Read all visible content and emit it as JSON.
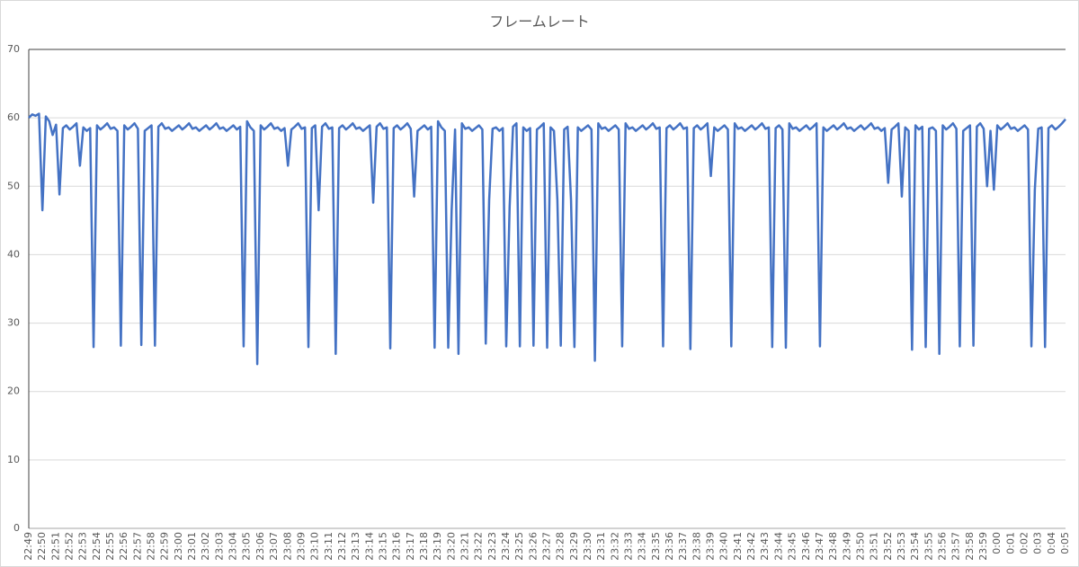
{
  "chart_data": {
    "type": "line",
    "title": "フレームレート",
    "categories": [
      "22:49",
      null,
      null,
      null,
      "22:50",
      null,
      null,
      null,
      "22:51",
      null,
      null,
      null,
      "22:52",
      null,
      null,
      null,
      "22:53",
      null,
      null,
      null,
      "22:54",
      null,
      null,
      null,
      "22:55",
      null,
      null,
      null,
      "22:56",
      null,
      null,
      null,
      "22:57",
      null,
      null,
      null,
      "22:58",
      null,
      null,
      null,
      "22:59",
      null,
      null,
      null,
      "23:00",
      null,
      null,
      null,
      "23:01",
      null,
      null,
      null,
      "23:02",
      null,
      null,
      null,
      "23:03",
      null,
      null,
      null,
      "23:04",
      null,
      null,
      null,
      "23:05",
      null,
      null,
      null,
      "23:06",
      null,
      null,
      null,
      "23:07",
      null,
      null,
      null,
      "23:08",
      null,
      null,
      null,
      "23:09",
      null,
      null,
      null,
      "23:10",
      null,
      null,
      null,
      "23:11",
      null,
      null,
      null,
      "23:12",
      null,
      null,
      null,
      "23:13",
      null,
      null,
      null,
      "23:14",
      null,
      null,
      null,
      "23:15",
      null,
      null,
      null,
      "23:16",
      null,
      null,
      null,
      "23:17",
      null,
      null,
      null,
      "23:18",
      null,
      null,
      null,
      "23:19",
      null,
      null,
      null,
      "23:20",
      null,
      null,
      null,
      "23:21",
      null,
      null,
      null,
      "23:22",
      null,
      null,
      null,
      "23:23",
      null,
      null,
      null,
      "23:24",
      null,
      null,
      null,
      "23:25",
      null,
      null,
      null,
      "23:26",
      null,
      null,
      null,
      "23:27",
      null,
      null,
      null,
      "23:28",
      null,
      null,
      null,
      "23:29",
      null,
      null,
      null,
      "23:30",
      null,
      null,
      null,
      "23:31",
      null,
      null,
      null,
      "23:32",
      null,
      null,
      null,
      "23:33",
      null,
      null,
      null,
      "23:34",
      null,
      null,
      null,
      "23:35",
      null,
      null,
      null,
      "23:36",
      null,
      null,
      null,
      "23:37",
      null,
      null,
      null,
      "23:38",
      null,
      null,
      null,
      "23:39",
      null,
      null,
      null,
      "23:40",
      null,
      null,
      null,
      "23:41",
      null,
      null,
      null,
      "23:42",
      null,
      null,
      null,
      "23:43",
      null,
      null,
      null,
      "23:44",
      null,
      null,
      null,
      "23:45",
      null,
      null,
      null,
      "23:46",
      null,
      null,
      null,
      "23:47",
      null,
      null,
      null,
      "23:48",
      null,
      null,
      null,
      "23:49",
      null,
      null,
      null,
      "23:50",
      null,
      null,
      null,
      "23:51",
      null,
      null,
      null,
      "23:52",
      null,
      null,
      null,
      "23:53",
      null,
      null,
      null,
      "23:54",
      null,
      null,
      null,
      "23:55",
      null,
      null,
      null,
      "23:56",
      null,
      null,
      null,
      "23:57",
      null,
      null,
      null,
      "23:58",
      null,
      null,
      null,
      "23:59",
      null,
      null,
      null,
      "0:00",
      null,
      null,
      null,
      "0:01",
      null,
      null,
      null,
      "0:02",
      null,
      null,
      null,
      "0:03",
      null,
      null,
      null,
      "0:04",
      null,
      null,
      null,
      "0:05"
    ],
    "series": [
      {
        "color": "#4472c4",
        "values": [
          60,
          60.5,
          60.3,
          60.6,
          46.5,
          60.2,
          59.5,
          57.5,
          59,
          48.8,
          58.5,
          58.9,
          58.3,
          58.7,
          59.2,
          53,
          58.6,
          58.1,
          58.5,
          26.5,
          58.9,
          58.3,
          58.7,
          59.2,
          58.4,
          58.6,
          58.1,
          26.7,
          58.9,
          58.3,
          58.7,
          59.2,
          58.4,
          26.8,
          58.1,
          58.5,
          58.9,
          26.7,
          58.7,
          59.2,
          58.4,
          58.6,
          58.1,
          58.5,
          58.9,
          58.3,
          58.7,
          59.2,
          58.4,
          58.6,
          58.1,
          58.5,
          58.9,
          58.3,
          58.7,
          59.2,
          58.4,
          58.6,
          58.1,
          58.5,
          58.9,
          58.3,
          58.7,
          26.6,
          59.5,
          58.6,
          58.1,
          24,
          58.9,
          58.3,
          58.7,
          59.2,
          58.4,
          58.6,
          58.1,
          58.5,
          53,
          58.3,
          58.7,
          59.2,
          58.4,
          58.6,
          26.5,
          58.5,
          58.9,
          46.5,
          58.7,
          59.2,
          58.4,
          58.6,
          25.5,
          58.5,
          58.9,
          58.3,
          58.7,
          59.2,
          58.4,
          58.6,
          58.1,
          58.5,
          58.9,
          47.6,
          58.7,
          59.2,
          58.4,
          58.6,
          26.3,
          58.5,
          58.9,
          58.3,
          58.7,
          59.2,
          58.4,
          48.5,
          58.1,
          58.5,
          58.9,
          58.3,
          58.7,
          26.4,
          59.5,
          58.6,
          58.1,
          26.4,
          46.5,
          58.3,
          25.5,
          59.2,
          58.4,
          58.6,
          58.1,
          58.5,
          58.9,
          58.3,
          27,
          48,
          58.4,
          58.6,
          58.1,
          58.5,
          26.6,
          47,
          58.7,
          59.2,
          26.6,
          58.6,
          58.1,
          58.5,
          26.7,
          58.3,
          58.7,
          59.2,
          26.4,
          58.6,
          58.1,
          48,
          26.7,
          58.3,
          58.7,
          48,
          26.5,
          58.6,
          58.1,
          58.5,
          58.9,
          58.3,
          24.5,
          59.2,
          58.4,
          58.6,
          58.1,
          58.5,
          58.9,
          58.3,
          26.6,
          59.2,
          58.4,
          58.6,
          58.1,
          58.5,
          58.9,
          58.3,
          58.7,
          59.2,
          58.4,
          58.6,
          26.6,
          58.5,
          58.9,
          58.3,
          58.7,
          59.2,
          58.4,
          58.6,
          26.2,
          58.5,
          58.9,
          58.3,
          58.7,
          59.2,
          51.5,
          58.6,
          58.1,
          58.5,
          58.9,
          58.3,
          26.6,
          59.2,
          58.4,
          58.6,
          58.1,
          58.5,
          58.9,
          58.3,
          58.7,
          59.2,
          58.4,
          58.6,
          26.5,
          58.5,
          58.9,
          58.3,
          26.4,
          59.2,
          58.4,
          58.6,
          58.1,
          58.5,
          58.9,
          58.3,
          58.7,
          59.2,
          26.6,
          58.6,
          58.1,
          58.5,
          58.9,
          58.3,
          58.7,
          59.2,
          58.4,
          58.6,
          58.1,
          58.5,
          58.9,
          58.3,
          58.7,
          59.2,
          58.4,
          58.6,
          58.1,
          58.5,
          50.5,
          58.3,
          58.7,
          59.2,
          48.5,
          58.6,
          58.1,
          26.1,
          58.9,
          58.3,
          58.7,
          26.5,
          58.4,
          58.6,
          58.1,
          25.5,
          58.9,
          58.3,
          58.7,
          59.2,
          58.4,
          26.6,
          58.1,
          58.5,
          58.9,
          26.7,
          58.7,
          59.2,
          58.4,
          50,
          58.1,
          49.5,
          58.9,
          58.3,
          58.7,
          59.2,
          58.4,
          58.6,
          58.1,
          58.5,
          58.9,
          58.3,
          26.6,
          49.5,
          58.4,
          58.6,
          26.5,
          58.5,
          58.9,
          58.3,
          58.7,
          59.2,
          59.8
        ]
      }
    ],
    "ylim": [
      0,
      70
    ],
    "yticks": [
      0,
      10,
      20,
      30,
      40,
      50,
      60,
      70
    ],
    "grid": true
  }
}
